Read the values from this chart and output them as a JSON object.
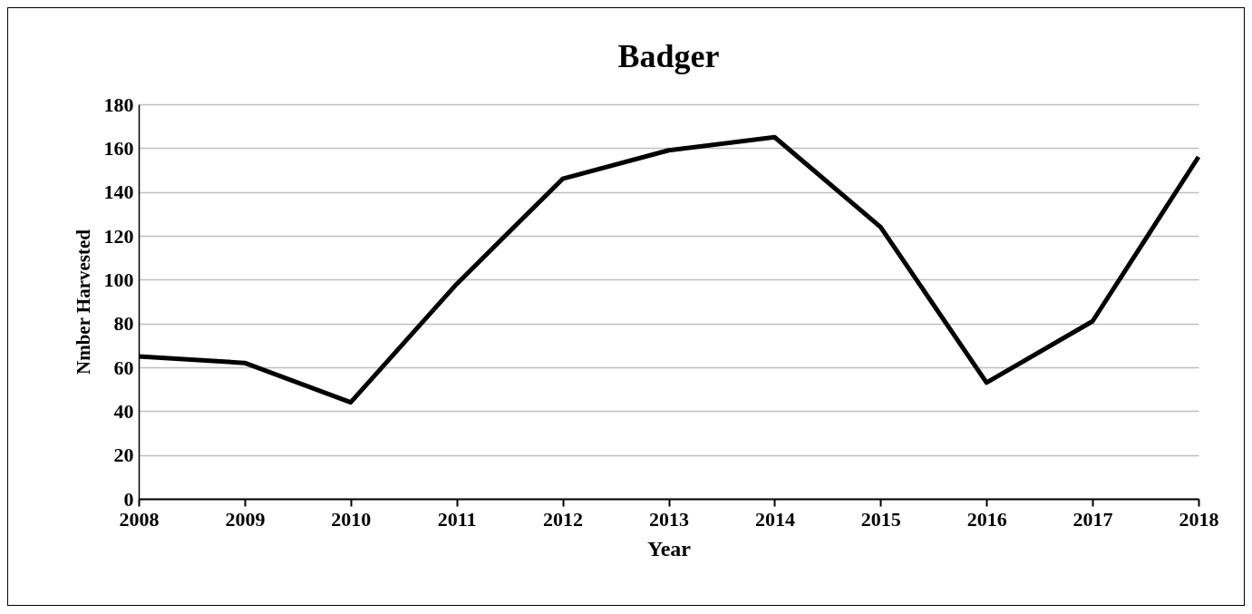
{
  "chart_data": {
    "type": "line",
    "title": "Badger",
    "xlabel": "Year",
    "ylabel": "Nmber Harvested",
    "x": [
      2008,
      2009,
      2010,
      2011,
      2012,
      2013,
      2014,
      2015,
      2016,
      2017,
      2018
    ],
    "series": [
      {
        "color": "#000000",
        "values": [
          65,
          62,
          44,
          98,
          146,
          159,
          165,
          124,
          53,
          81,
          156
        ]
      }
    ],
    "xlim": [
      2008,
      2018
    ],
    "xticks": [
      2008,
      2009,
      2010,
      2011,
      2012,
      2013,
      2014,
      2015,
      2016,
      2017,
      2018
    ],
    "ylim": [
      0,
      180
    ],
    "yticks": [
      0,
      20,
      40,
      60,
      80,
      100,
      120,
      140,
      160,
      180
    ],
    "grid": "y",
    "marker": "none",
    "line_style": "solid"
  }
}
